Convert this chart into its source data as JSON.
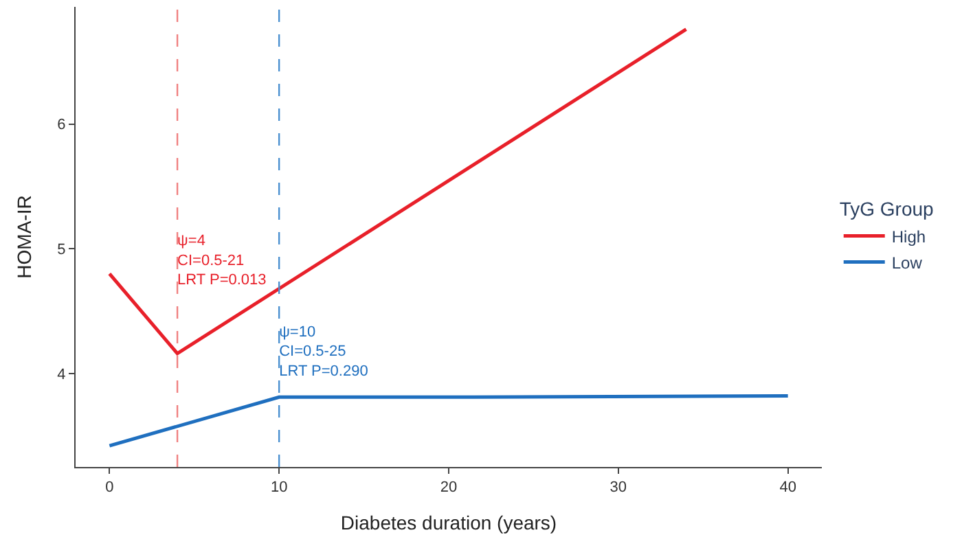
{
  "chart_data": {
    "type": "line",
    "xlabel": "Diabetes duration (years)",
    "ylabel": "HOMA-IR",
    "legend_title": "TyG Group",
    "series": [
      {
        "name": "High",
        "color": "#e8202a",
        "x": [
          0,
          4,
          34
        ],
        "values": [
          4.8,
          4.16,
          6.76
        ]
      },
      {
        "name": "Low",
        "color": "#1f6fbf",
        "x": [
          0,
          10,
          21.5,
          40
        ],
        "values": [
          3.42,
          3.81,
          3.81,
          3.82
        ]
      }
    ],
    "xlim": [
      -2,
      42
    ],
    "xticks": [
      0,
      10,
      20,
      30,
      40
    ],
    "ylim": [
      3.25,
      6.94
    ],
    "yticks": [
      4,
      5,
      6
    ],
    "ref_lines": [
      {
        "axis": "x",
        "value": 4,
        "color": "#f08080",
        "line_style": "dashed"
      },
      {
        "axis": "x",
        "value": 10,
        "color": "#4a90d0",
        "line_style": "dashed"
      }
    ],
    "annotations": [
      {
        "text": "ψ=4\nCI=0.5-21\nLRT P=0.013",
        "x": 4,
        "y": 4.9
      },
      {
        "text": "ψ=10\nCI=0.5-25\nLRT P=0.290",
        "x": 10,
        "y": 4.17
      }
    ],
    "grid": false,
    "legend": "right",
    "marker": "none",
    "line_style": "solid"
  }
}
